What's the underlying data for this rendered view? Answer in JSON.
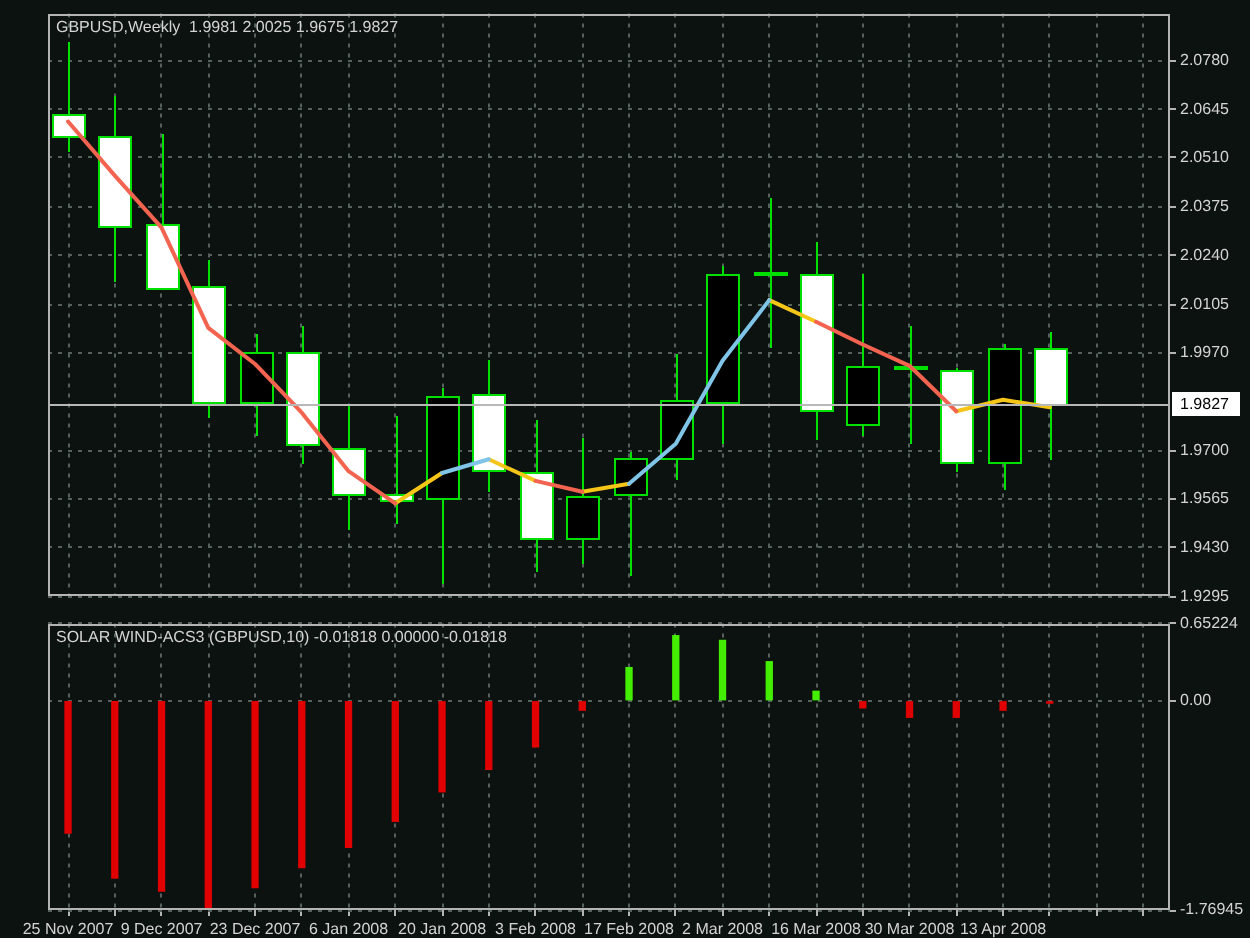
{
  "chart_data": [
    {
      "type": "candlestick",
      "title": "GBPUSD,Weekly  1.9981 2.0025 1.9675 1.9827",
      "x": [
        "2007-11-25",
        "2007-12-02",
        "2007-12-09",
        "2007-12-16",
        "2007-12-23",
        "2007-12-30",
        "2008-01-06",
        "2008-01-13",
        "2008-01-20",
        "2008-01-27",
        "2008-02-03",
        "2008-02-10",
        "2008-02-17",
        "2008-02-24",
        "2008-03-02",
        "2008-03-09",
        "2008-03-16",
        "2008-03-23",
        "2008-03-30",
        "2008-04-06",
        "2008-04-13",
        "2008-04-20"
      ],
      "ohlc": [
        [
          2.0633,
          2.083,
          2.0525,
          2.0573
        ],
        [
          2.0569,
          2.0681,
          2.0168,
          2.0321
        ],
        [
          2.0326,
          2.0579,
          2.0145,
          2.015
        ],
        [
          2.0155,
          2.0228,
          1.979,
          1.9831
        ],
        [
          1.9831,
          2.0024,
          1.9742,
          1.9975
        ],
        [
          1.9975,
          2.0047,
          1.9661,
          1.9715
        ],
        [
          1.9709,
          1.9823,
          1.948,
          1.958
        ],
        [
          1.958,
          1.9796,
          1.9498,
          1.9561
        ],
        [
          1.9565,
          1.9871,
          1.9327,
          1.9853
        ],
        [
          1.9858,
          1.9948,
          1.9587,
          1.9646
        ],
        [
          1.9642,
          1.9783,
          1.9364,
          1.9457
        ],
        [
          1.9459,
          1.9732,
          1.9387,
          1.9574
        ],
        [
          1.9576,
          1.9696,
          1.9354,
          1.9678
        ],
        [
          1.9678,
          1.9966,
          1.9615,
          1.984
        ],
        [
          1.9835,
          2.0209,
          1.9715,
          2.0186
        ],
        [
          2.0186,
          2.0398,
          1.9985,
          2.0195
        ],
        [
          2.0186,
          2.0276,
          1.9729,
          1.9813
        ],
        [
          1.9772,
          2.0186,
          1.9742,
          1.9931
        ],
        [
          1.9929,
          2.0047,
          1.9715,
          1.9933
        ],
        [
          1.9925,
          1.993,
          1.9639,
          1.9666
        ],
        [
          1.9666,
          1.9993,
          1.9588,
          1.9981
        ],
        [
          1.9981,
          2.0025,
          1.9675,
          1.9827
        ]
      ],
      "color": "#00e000",
      "colors": [
        "#ffffff",
        "#ffffff",
        "#ffffff",
        "#ffffff",
        "#000000",
        "#ffffff",
        "#ffffff",
        "#ffffff",
        "#000000",
        "#ffffff",
        "#ffffff",
        "#000000",
        "#000000",
        "#000000",
        "#000000",
        "#000000",
        "#ffffff",
        "#000000",
        "#000000",
        "#ffffff",
        "#000000",
        "#ffffff"
      ],
      "series": [
        {
          "type": "line",
          "color": "#f26450",
          "values": [
            2.0611,
            2.0461,
            2.0317,
            2.0039,
            1.9939,
            1.9804,
            1.9642,
            1.9553,
            null,
            null,
            1.9615,
            1.9585,
            null,
            null,
            null,
            null,
            2.0056,
            1.9993,
            1.9934,
            1.9808,
            null,
            null
          ]
        },
        {
          "type": "line",
          "color": "#80c4e8",
          "values": [
            null,
            null,
            null,
            null,
            null,
            null,
            null,
            null,
            1.9637,
            1.9675,
            null,
            null,
            1.9607,
            1.9718,
            1.9948,
            2.0116,
            null,
            null,
            null,
            null,
            null,
            null
          ]
        },
        {
          "type": "line",
          "color": "#f5c518",
          "values": [
            null,
            null,
            null,
            null,
            null,
            null,
            null,
            1.9553,
            1.9637,
            null,
            null,
            1.9585,
            1.9607,
            null,
            null,
            2.0116,
            2.0056,
            null,
            null,
            1.9808,
            1.984,
            1.9819
          ]
        },
        {
          "type": "line",
          "color": "#f5c518",
          "values": [
            null,
            null,
            null,
            null,
            null,
            null,
            null,
            null,
            null,
            1.9675,
            1.9615,
            null,
            null,
            null,
            null,
            null,
            null,
            null,
            null,
            null,
            null,
            null
          ]
        }
      ],
      "xlim": [
        "2007-11-22",
        "2008-05-08"
      ],
      "xticks": [
        {
          "value": "2007-11-25",
          "label": null
        },
        {
          "value": "2007-12-02",
          "label": null
        },
        {
          "value": "2007-12-09",
          "label": null
        },
        {
          "value": "2007-12-16",
          "label": null
        },
        {
          "value": "2007-12-23",
          "label": null
        },
        {
          "value": "2007-12-30",
          "label": null
        },
        {
          "value": "2008-01-06",
          "label": null
        },
        {
          "value": "2008-01-13",
          "label": null
        },
        {
          "value": "2008-01-20",
          "label": null
        },
        {
          "value": "2008-01-27",
          "label": null
        },
        {
          "value": "2008-02-03",
          "label": null
        },
        {
          "value": "2008-02-10",
          "label": null
        },
        {
          "value": "2008-02-17",
          "label": null
        },
        {
          "value": "2008-02-24",
          "label": null
        },
        {
          "value": "2008-03-02",
          "label": null
        },
        {
          "value": "2008-03-09",
          "label": null
        },
        {
          "value": "2008-03-16",
          "label": null
        },
        {
          "value": "2008-03-23",
          "label": null
        },
        {
          "value": "2008-03-30",
          "label": null
        },
        {
          "value": "2008-04-06",
          "label": null
        },
        {
          "value": "2008-04-13",
          "label": null
        },
        {
          "value": "2008-04-20",
          "label": null
        },
        {
          "value": "2008-04-27",
          "label": null
        },
        {
          "value": "2008-05-04",
          "label": null
        }
      ],
      "ylim": [
        1.9295,
        2.091
      ],
      "yticks": [
        {
          "value": 2.078,
          "label": "2.0780"
        },
        2.0645,
        {
          "value": 2.051,
          "label": "2.0510"
        },
        2.0375,
        {
          "value": 2.024,
          "label": "2.0240"
        },
        2.0105,
        {
          "value": 1.997,
          "label": "1.9970"
        },
        {
          "value": 1.97,
          "label": "1.9700"
        },
        1.9565,
        {
          "value": 1.943,
          "label": "1.9430"
        },
        1.9295
      ],
      "ref_lines": [
        {
          "axis": "y",
          "value": 1.9827,
          "label": "1.9827",
          "color": "#b8b8b8"
        }
      ],
      "grid": true,
      "tick_labels": "y"
    },
    {
      "type": "bar",
      "title": "SOLAR WIND-ACS3 (GBPUSD,10) -0.01818 0.00000 -0.01818",
      "x": [
        "2007-11-25",
        "2007-12-02",
        "2007-12-09",
        "2007-12-16",
        "2007-12-23",
        "2007-12-30",
        "2008-01-06",
        "2008-01-13",
        "2008-01-20",
        "2008-01-27",
        "2008-02-03",
        "2008-02-10",
        "2008-02-17",
        "2008-02-24",
        "2008-03-02",
        "2008-03-09",
        "2008-03-16",
        "2008-03-23",
        "2008-03-30",
        "2008-04-06",
        "2008-04-13",
        "2008-04-20"
      ],
      "values": [
        -1.12,
        -1.5,
        -1.61,
        -1.76,
        -1.58,
        -1.41,
        -1.24,
        -1.02,
        -0.77,
        -0.58,
        -0.39,
        -0.08,
        0.28,
        0.55,
        0.51,
        0.33,
        0.08,
        -0.06,
        -0.14,
        -0.14,
        -0.08,
        -0.02
      ],
      "colors": [
        "#e00000",
        "#e00000",
        "#e00000",
        "#e00000",
        "#e00000",
        "#e00000",
        "#e00000",
        "#e00000",
        "#e00000",
        "#e00000",
        "#e00000",
        "#e00000",
        "#44ee00",
        "#44ee00",
        "#44ee00",
        "#44ee00",
        "#44ee00",
        "#e00000",
        "#e00000",
        "#e00000",
        "#e00000",
        "#e00000"
      ],
      "xlim": [
        "2007-11-22",
        "2008-05-08"
      ],
      "xticks": [
        {
          "value": "2007-11-25",
          "label": "25 Nov 2007"
        },
        {
          "value": "2007-12-02",
          "label": null
        },
        {
          "value": "2007-12-09",
          "label": "9 Dec 2007"
        },
        {
          "value": "2007-12-16",
          "label": null
        },
        {
          "value": "2007-12-23",
          "label": "23 Dec 2007"
        },
        {
          "value": "2007-12-30",
          "label": null
        },
        {
          "value": "2008-01-06",
          "label": "6 Jan 2008"
        },
        {
          "value": "2008-01-13",
          "label": null
        },
        {
          "value": "2008-01-20",
          "label": "20 Jan 2008"
        },
        {
          "value": "2008-01-27",
          "label": null
        },
        {
          "value": "2008-02-03",
          "label": "3 Feb 2008"
        },
        {
          "value": "2008-02-10",
          "label": null
        },
        {
          "value": "2008-02-17",
          "label": "17 Feb 2008"
        },
        {
          "value": "2008-02-24",
          "label": null
        },
        {
          "value": "2008-03-02",
          "label": "2 Mar 2008"
        },
        {
          "value": "2008-03-09",
          "label": null
        },
        {
          "value": "2008-03-16",
          "label": "16 Mar 2008"
        },
        {
          "value": "2008-03-23",
          "label": null
        },
        {
          "value": "2008-03-30",
          "label": "30 Mar 2008"
        },
        {
          "value": "2008-04-06",
          "label": null
        },
        {
          "value": "2008-04-13",
          "label": "13 Apr 2008"
        },
        {
          "value": "2008-04-20",
          "label": null
        },
        {
          "value": "2008-04-27",
          "label": null
        },
        {
          "value": "2008-05-04",
          "label": null
        }
      ],
      "ylim": [
        -1.76945,
        0.65224
      ],
      "yticks": [
        -1.76945,
        {
          "value": 0,
          "label": "0.00"
        },
        0.65224
      ],
      "grid": true
    }
  ]
}
